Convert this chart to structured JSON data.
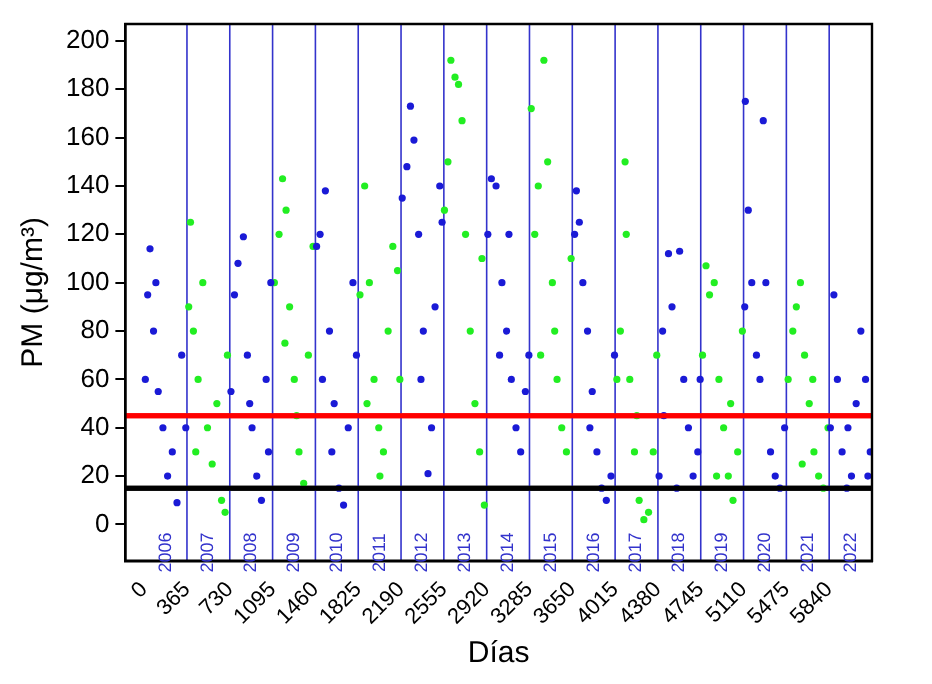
{
  "chart_data": {
    "type": "scatter",
    "xlabel": "Días",
    "ylabel": "PM (μg/m³)",
    "xlim": [
      -160,
      6205
    ],
    "xticks": [
      0,
      365,
      730,
      1095,
      1460,
      1825,
      2190,
      2555,
      2920,
      3285,
      3650,
      4015,
      4380,
      4745,
      5110,
      5475,
      5840
    ],
    "ylim": [
      -15,
      207
    ],
    "yticks": [
      0,
      20,
      40,
      60,
      80,
      100,
      120,
      140,
      160,
      180,
      200
    ],
    "grid": false,
    "legend": false,
    "marker": "circle",
    "series": [
      {
        "color": "#1a1ad6",
        "x": [
          10,
          30,
          50,
          80,
          100,
          120,
          160,
          200,
          240,
          280,
          320,
          355,
          740,
          770,
          800,
          846,
          880,
          900,
          920,
          960,
          1000,
          1040,
          1060,
          1080,
          1470,
          1500,
          1520,
          1545,
          1580,
          1600,
          1620,
          1660,
          1700,
          1740,
          1780,
          1810,
          2200,
          2240,
          2270,
          2300,
          2340,
          2360,
          2380,
          2420,
          2450,
          2480,
          2520,
          2540,
          2930,
          2960,
          3000,
          3030,
          3050,
          3090,
          3110,
          3130,
          3170,
          3210,
          3250,
          3280,
          3670,
          3685,
          3710,
          3740,
          3780,
          3800,
          3820,
          3860,
          3900,
          3940,
          3980,
          4010,
          4390,
          4420,
          4430,
          4470,
          4500,
          4540,
          4565,
          4600,
          4640,
          4680,
          4720,
          4740,
          5120,
          5125,
          5150,
          5180,
          5220,
          5250,
          5278,
          5300,
          5340,
          5380,
          5420,
          5460,
          5850,
          5880,
          5910,
          5950,
          5990,
          6000,
          6030,
          6070,
          6110,
          6150,
          6170,
          6190
        ],
        "values": [
          60,
          95,
          114,
          80,
          100,
          55,
          40,
          20,
          30,
          9,
          70,
          40,
          55,
          95,
          108,
          119,
          70,
          50,
          40,
          20,
          10,
          60,
          30,
          100,
          115,
          120,
          60,
          138,
          80,
          30,
          50,
          15,
          8,
          40,
          100,
          70,
          135,
          148,
          173,
          159,
          120,
          60,
          80,
          21,
          40,
          90,
          140,
          125,
          120,
          143,
          140,
          70,
          100,
          80,
          120,
          60,
          40,
          30,
          55,
          70,
          120,
          138,
          125,
          100,
          80,
          40,
          55,
          30,
          15,
          10,
          20,
          70,
          20,
          80,
          45,
          112,
          90,
          15,
          113,
          60,
          40,
          20,
          30,
          60,
          90,
          175,
          130,
          100,
          70,
          60,
          167,
          100,
          30,
          20,
          15,
          40,
          40,
          95,
          60,
          30,
          15,
          40,
          20,
          50,
          80,
          60,
          20,
          30
        ]
      },
      {
        "color": "#22ee22",
        "x": [
          380,
          395,
          420,
          440,
          460,
          500,
          540,
          580,
          620,
          660,
          690,
          710,
          1110,
          1150,
          1180,
          1200,
          1210,
          1240,
          1280,
          1300,
          1320,
          1360,
          1400,
          1440,
          1840,
          1880,
          1900,
          1920,
          1960,
          2000,
          2010,
          2040,
          2080,
          2120,
          2160,
          2180,
          2560,
          2590,
          2615,
          2650,
          2680,
          2710,
          2740,
          2780,
          2820,
          2860,
          2880,
          2900,
          3300,
          3330,
          3360,
          3380,
          3408,
          3440,
          3480,
          3500,
          3520,
          3560,
          3600,
          3640,
          4030,
          4060,
          4100,
          4110,
          4140,
          4180,
          4200,
          4220,
          4260,
          4300,
          4340,
          4370,
          4760,
          4790,
          4820,
          4860,
          4880,
          4900,
          4940,
          4980,
          5000,
          5020,
          5060,
          5100,
          5490,
          5530,
          5560,
          5595,
          5610,
          5630,
          5670,
          5700,
          5710,
          5750,
          5790,
          5830
        ],
        "values": [
          90,
          125,
          80,
          30,
          60,
          100,
          40,
          25,
          50,
          10,
          5,
          70,
          100,
          120,
          143,
          75,
          130,
          90,
          60,
          45,
          30,
          17,
          70,
          115,
          95,
          140,
          50,
          100,
          60,
          40,
          20,
          30,
          80,
          115,
          105,
          60,
          130,
          150,
          192,
          185,
          182,
          167,
          120,
          80,
          50,
          30,
          110,
          8,
          172,
          120,
          140,
          70,
          192,
          150,
          100,
          80,
          60,
          40,
          30,
          110,
          60,
          80,
          150,
          120,
          60,
          30,
          45,
          10,
          2,
          5,
          30,
          70,
          70,
          107,
          95,
          100,
          20,
          60,
          40,
          20,
          50,
          10,
          30,
          80,
          60,
          80,
          90,
          100,
          25,
          70,
          50,
          60,
          30,
          20,
          15,
          40
        ]
      }
    ],
    "ref_lines": [
      {
        "axis": "y",
        "value": 45,
        "color": "#ff0000"
      },
      {
        "axis": "y",
        "value": 15,
        "color": "#000000"
      },
      {
        "axis": "x",
        "value": 365,
        "color": "#3333cc"
      },
      {
        "axis": "x",
        "value": 730,
        "color": "#3333cc"
      },
      {
        "axis": "x",
        "value": 1095,
        "color": "#3333cc"
      },
      {
        "axis": "x",
        "value": 1460,
        "color": "#3333cc"
      },
      {
        "axis": "x",
        "value": 1825,
        "color": "#3333cc"
      },
      {
        "axis": "x",
        "value": 2190,
        "color": "#3333cc"
      },
      {
        "axis": "x",
        "value": 2555,
        "color": "#3333cc"
      },
      {
        "axis": "x",
        "value": 2920,
        "color": "#3333cc"
      },
      {
        "axis": "x",
        "value": 3285,
        "color": "#3333cc"
      },
      {
        "axis": "x",
        "value": 3650,
        "color": "#3333cc"
      },
      {
        "axis": "x",
        "value": 4015,
        "color": "#3333cc"
      },
      {
        "axis": "x",
        "value": 4380,
        "color": "#3333cc"
      },
      {
        "axis": "x",
        "value": 4745,
        "color": "#3333cc"
      },
      {
        "axis": "x",
        "value": 5110,
        "color": "#3333cc"
      },
      {
        "axis": "x",
        "value": 5475,
        "color": "#3333cc"
      },
      {
        "axis": "x",
        "value": 5840,
        "color": "#3333cc"
      }
    ],
    "annotations": [
      "2006",
      "2007",
      "2008",
      "2009",
      "2010",
      "2011",
      "2012",
      "2013",
      "2014",
      "2015",
      "2016",
      "2017",
      "2018",
      "2019",
      "2020",
      "2021",
      "2022"
    ]
  }
}
